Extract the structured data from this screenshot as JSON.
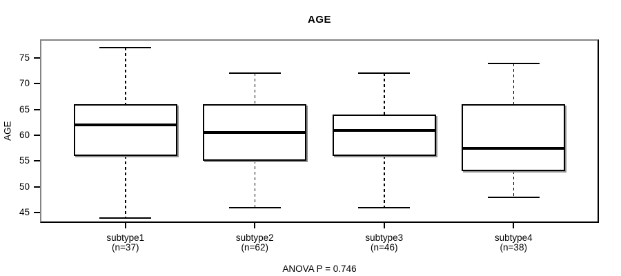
{
  "title": "AGE",
  "y_axis_title": "AGE",
  "footer_note": "ANOVA P = 0.746",
  "chart_data": {
    "type": "boxplot",
    "title": "AGE",
    "xlabel": "",
    "ylabel": "AGE",
    "ylim": [
      43,
      78.62
    ],
    "xlim_units": [
      0.34,
      4.66
    ],
    "yticks": [
      45,
      50,
      55,
      60,
      65,
      70,
      75
    ],
    "grid": false,
    "annotation": "ANOVA P = 0.746",
    "categories": [
      "subtype1",
      "subtype2",
      "subtype3",
      "subtype4"
    ],
    "groups": [
      {
        "label": "subtype1",
        "sublabel": "(n=37)",
        "n": 37,
        "min": 44,
        "q1": 56,
        "median": 62,
        "q3": 66,
        "max": 77
      },
      {
        "label": "subtype2",
        "sublabel": "(n=62)",
        "n": 62,
        "min": 46,
        "q1": 55,
        "median": 60.5,
        "q3": 66,
        "max": 72
      },
      {
        "label": "subtype3",
        "sublabel": "(n=46)",
        "n": 46,
        "min": 46,
        "q1": 56,
        "median": 61,
        "q3": 64,
        "max": 72
      },
      {
        "label": "subtype4",
        "sublabel": "(n=38)",
        "n": 38,
        "min": 48,
        "q1": 53,
        "median": 57.5,
        "q3": 66,
        "max": 74
      }
    ],
    "colors": {
      "background": "#ffffff",
      "stroke": "#000000",
      "median": "#000000",
      "frame_light": "#848484",
      "frame_dark": "#000000",
      "box_shadow": "#8f8f8f"
    }
  }
}
